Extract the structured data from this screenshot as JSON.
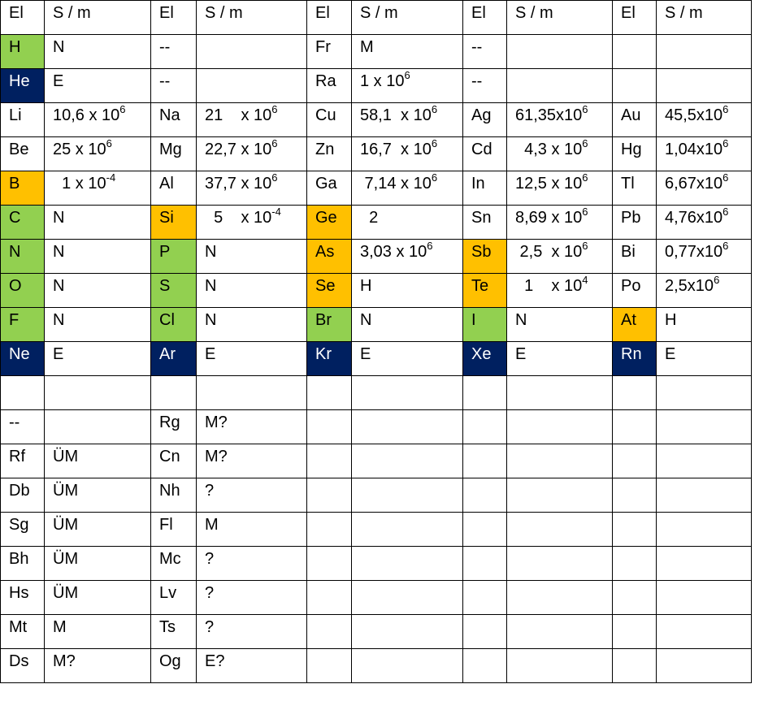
{
  "table": {
    "rows": [
      [
        "El",
        "S / m",
        "El",
        "S / m",
        "El",
        "S / m",
        "El",
        "S / m",
        "El",
        "S / m"
      ],
      [
        {
          "text": "H",
          "fill": "#92d050"
        },
        "N",
        "--",
        null,
        "Fr",
        "M",
        "--",
        null,
        null,
        null
      ],
      [
        {
          "text": "He",
          "fill": "#002060"
        },
        "E",
        "--",
        null,
        "Ra",
        {
          "text": "1 x 10",
          "sup": "6"
        },
        "--",
        null,
        null,
        null
      ],
      [
        "Li",
        {
          "text": "10,6 x 10",
          "sup": "6"
        },
        "Na",
        {
          "text": "21    x 10",
          "sup": "6"
        },
        "Cu",
        {
          "text": "58,1  x 10",
          "sup": "6"
        },
        "Ag",
        {
          "text": "61,35x10",
          "sup": "6"
        },
        "Au",
        {
          "text": "45,5x10",
          "sup": "6"
        }
      ],
      [
        "Be",
        {
          "text": "25 x 10",
          "sup": "6"
        },
        "Mg",
        {
          "text": "22,7 x 10",
          "sup": "6"
        },
        "Zn",
        {
          "text": "16,7  x 10",
          "sup": "6"
        },
        "Cd",
        {
          "text": "  4,3 x 10",
          "sup": "6"
        },
        "Hg",
        {
          "text": "1,04x10",
          "sup": "6"
        }
      ],
      [
        {
          "text": "B",
          "fill": "#ffc000"
        },
        {
          "text": "  1 x 10",
          "sup": "-4"
        },
        "Al",
        {
          "text": "37,7 x 10",
          "sup": "6"
        },
        "Ga",
        {
          "text": " 7,14 x 10",
          "sup": "6"
        },
        "In",
        {
          "text": "12,5 x 10",
          "sup": "6"
        },
        "Tl",
        {
          "text": "6,67x10",
          "sup": "6"
        }
      ],
      [
        {
          "text": "C",
          "fill": "#92d050"
        },
        "N",
        {
          "text": "Si",
          "fill": "#ffc000"
        },
        {
          "text": "  5    x 10",
          "sup": "-4"
        },
        {
          "text": "Ge",
          "fill": "#ffc000"
        },
        "  2",
        "Sn",
        {
          "text": "8,69 x 10",
          "sup": "6"
        },
        "Pb",
        {
          "text": "4,76x10",
          "sup": "6"
        }
      ],
      [
        {
          "text": "N",
          "fill": "#92d050"
        },
        "N",
        {
          "text": "P",
          "fill": "#92d050"
        },
        "N",
        {
          "text": "As",
          "fill": "#ffc000"
        },
        {
          "text": "3,03 x 10",
          "sup": "6"
        },
        {
          "text": "Sb",
          "fill": "#ffc000"
        },
        {
          "text": " 2,5  x 10",
          "sup": "6"
        },
        "Bi",
        {
          "text": "0,77x10",
          "sup": "6"
        }
      ],
      [
        {
          "text": "O",
          "fill": "#92d050"
        },
        "N",
        {
          "text": "S",
          "fill": "#92d050"
        },
        "N",
        {
          "text": "Se",
          "fill": "#ffc000"
        },
        "H",
        {
          "text": "Te",
          "fill": "#ffc000"
        },
        {
          "text": "  1    x 10",
          "sup": "4"
        },
        "Po",
        {
          "text": "2,5x10",
          "sup": "6"
        }
      ],
      [
        {
          "text": "F",
          "fill": "#92d050"
        },
        "N",
        {
          "text": "Cl",
          "fill": "#92d050"
        },
        "N",
        {
          "text": "Br",
          "fill": "#92d050"
        },
        "N",
        {
          "text": "I",
          "fill": "#92d050"
        },
        "N",
        {
          "text": "At",
          "fill": "#ffc000"
        },
        "H"
      ],
      [
        {
          "text": "Ne",
          "fill": "#002060"
        },
        "E",
        {
          "text": "Ar",
          "fill": "#002060"
        },
        "E",
        {
          "text": "Kr",
          "fill": "#002060"
        },
        "E",
        {
          "text": "Xe",
          "fill": "#002060"
        },
        "E",
        {
          "text": "Rn",
          "fill": "#002060"
        },
        "E"
      ],
      [
        null,
        null,
        null,
        null,
        null,
        null,
        null,
        null,
        null,
        null
      ],
      [
        "--",
        null,
        "Rg",
        "M?",
        null,
        null,
        null,
        null,
        null,
        null
      ],
      [
        "Rf",
        "ÜM",
        "Cn",
        "M?",
        null,
        null,
        null,
        null,
        null,
        null
      ],
      [
        "Db",
        "ÜM",
        "Nh",
        "?",
        null,
        null,
        null,
        null,
        null,
        null
      ],
      [
        "Sg",
        "ÜM",
        "Fl",
        "M",
        null,
        null,
        null,
        null,
        null,
        null
      ],
      [
        "Bh",
        "ÜM",
        "Mc",
        "?",
        null,
        null,
        null,
        null,
        null,
        null
      ],
      [
        "Hs",
        "ÜM",
        "Lv",
        "?",
        null,
        null,
        null,
        null,
        null,
        null
      ],
      [
        "Mt",
        "M",
        "Ts",
        "?",
        null,
        null,
        null,
        null,
        null,
        null
      ],
      [
        "Ds",
        "M?",
        "Og",
        "E?",
        null,
        null,
        null,
        null,
        null,
        null
      ]
    ]
  }
}
